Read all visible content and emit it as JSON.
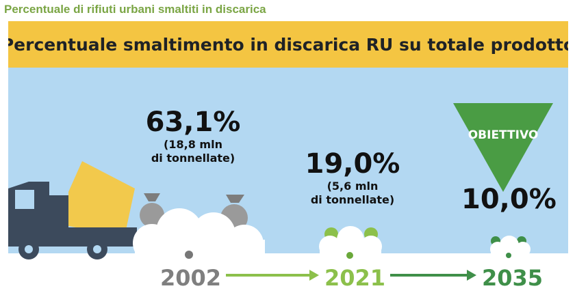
{
  "page_title": "Percentuale di rifiuti urbani smaltiti in discarica",
  "banner_title": "Percentuale smaltimento in discarica RU su totale prodotto",
  "stats": [
    {
      "percent": "63,1%",
      "note_line1": "(18,8 mln",
      "note_line2": "di tonnellate)"
    },
    {
      "percent": "19,0%",
      "note_line1": "(5,6 mln",
      "note_line2": "di tonnellate)"
    },
    {
      "percent": "10,0%"
    }
  ],
  "goal_label": "OBIETTIVO",
  "timeline": {
    "years": [
      "2002",
      "2021",
      "2035"
    ],
    "colors": {
      "2002": "#7f7f7f",
      "2021": "#8cc04b",
      "2035": "#3f8f49"
    }
  },
  "colors": {
    "banner": "#f4c542",
    "sky": "#b3d8f2",
    "truck_cab": "#3c4a5c",
    "truck_drum": "#f2c94c",
    "goal_triangle": "#4a9c44",
    "clouds": "#ffffff"
  },
  "icons": [
    "garbage-truck-icon",
    "trash-bag-icon",
    "recycle-bag-icon",
    "arrow-right-icon",
    "goal-triangle-icon"
  ]
}
